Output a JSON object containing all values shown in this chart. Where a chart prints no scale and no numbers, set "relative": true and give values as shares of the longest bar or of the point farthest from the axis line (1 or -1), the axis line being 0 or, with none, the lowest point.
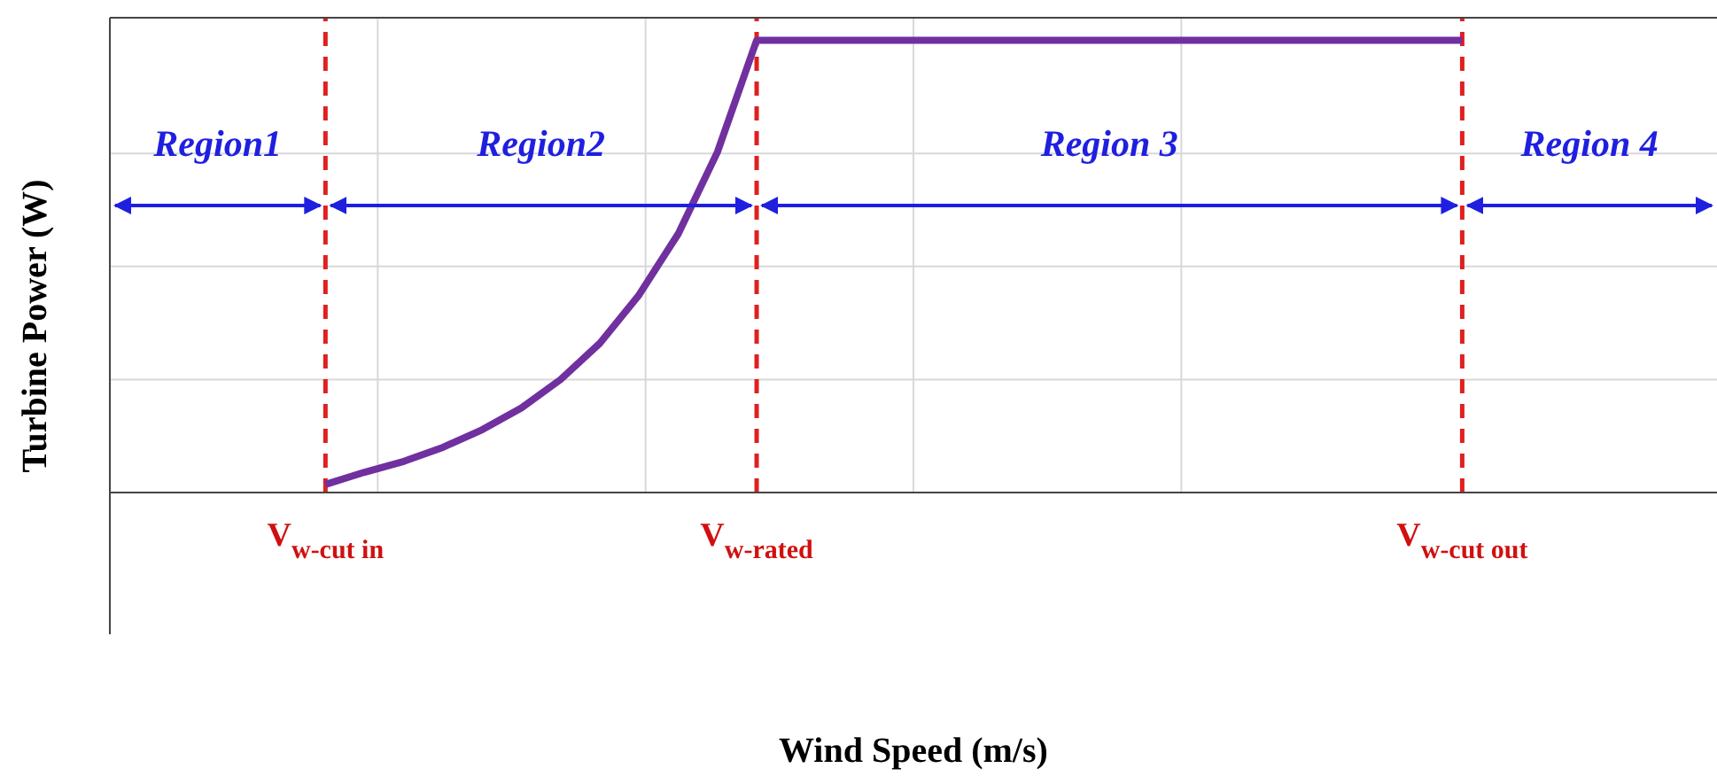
{
  "chart_data": {
    "type": "line",
    "relative": true,
    "xlabel": "Wind Speed (m/s)",
    "ylabel": "Turbine Power (W)",
    "categories": [
      null,
      null,
      null,
      null,
      null,
      "V$_{w-cut in}$",
      null,
      null,
      null,
      null,
      null,
      null,
      null,
      null,
      null,
      null,
      "V$_{w-rated}$",
      null,
      null,
      null,
      null,
      null,
      null,
      null,
      null,
      null,
      null,
      null,
      null,
      null,
      null,
      null,
      null,
      null,
      "V$_{w-cut out}$",
      null,
      null,
      null,
      null,
      null,
      null
    ],
    "grid": true,
    "marker": "none",
    "line_style": "solid",
    "series": [
      {
        "color": "#7030a0",
        "values": [
          null,
          null,
          null,
          null,
          null,
          0.018,
          0.045,
          0.069,
          0.1,
          0.139,
          0.187,
          0.25,
          0.33,
          0.437,
          0.572,
          0.753,
          1,
          1,
          1,
          1,
          1,
          1,
          1,
          1,
          1,
          1,
          1,
          1,
          1,
          1,
          1,
          1,
          1,
          1,
          1,
          null,
          null,
          null,
          null,
          null,
          null
        ]
      }
    ],
    "ref_lines": [
      {
        "axis": "x",
        "value": "V$_{w-cut in}$",
        "color": "#e02020",
        "line_style": "dashed"
      },
      {
        "axis": "x",
        "value": "V$_{w-rated}$",
        "color": "#e02020",
        "line_style": "dashed"
      },
      {
        "axis": "x",
        "value": "V$_{w-cut out}$",
        "color": "#e02020",
        "line_style": "dashed"
      }
    ],
    "annotations": [
      "Region1",
      "Region2",
      "Region 3",
      "Region 4"
    ]
  }
}
